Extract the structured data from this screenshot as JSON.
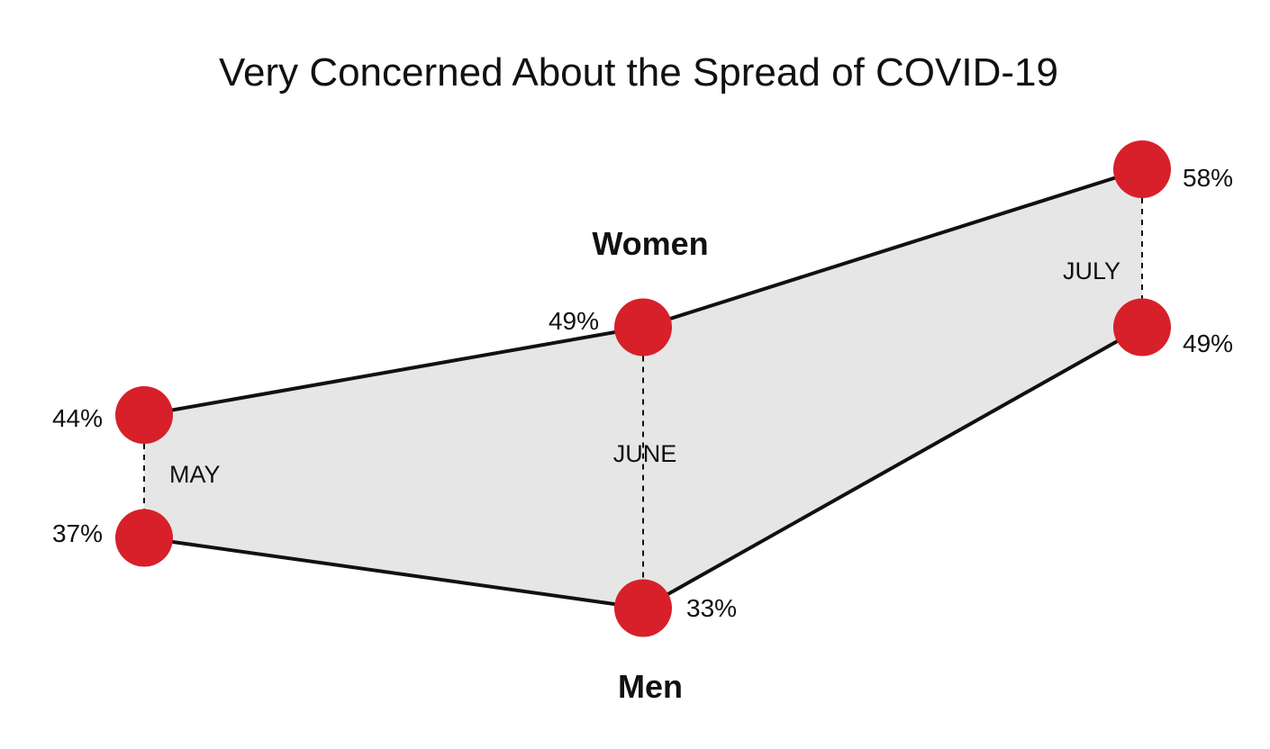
{
  "chart_data": {
    "type": "line",
    "title": "Very Concerned About the Spread of COVID-19",
    "categories": [
      "MAY",
      "JUNE",
      "JULY"
    ],
    "series": [
      {
        "name": "Women",
        "values": [
          44,
          49,
          58
        ],
        "labels": [
          "44%",
          "49%",
          "58%"
        ]
      },
      {
        "name": "Men",
        "values": [
          37,
          33,
          49
        ],
        "labels": [
          "37%",
          "33%",
          "49%"
        ]
      }
    ],
    "unit": "%",
    "fill_between": true,
    "grid": false,
    "colors": {
      "marker": "#d7202a",
      "line": "#111111",
      "fill": "#e6e6e6",
      "connector": "#111111"
    }
  }
}
